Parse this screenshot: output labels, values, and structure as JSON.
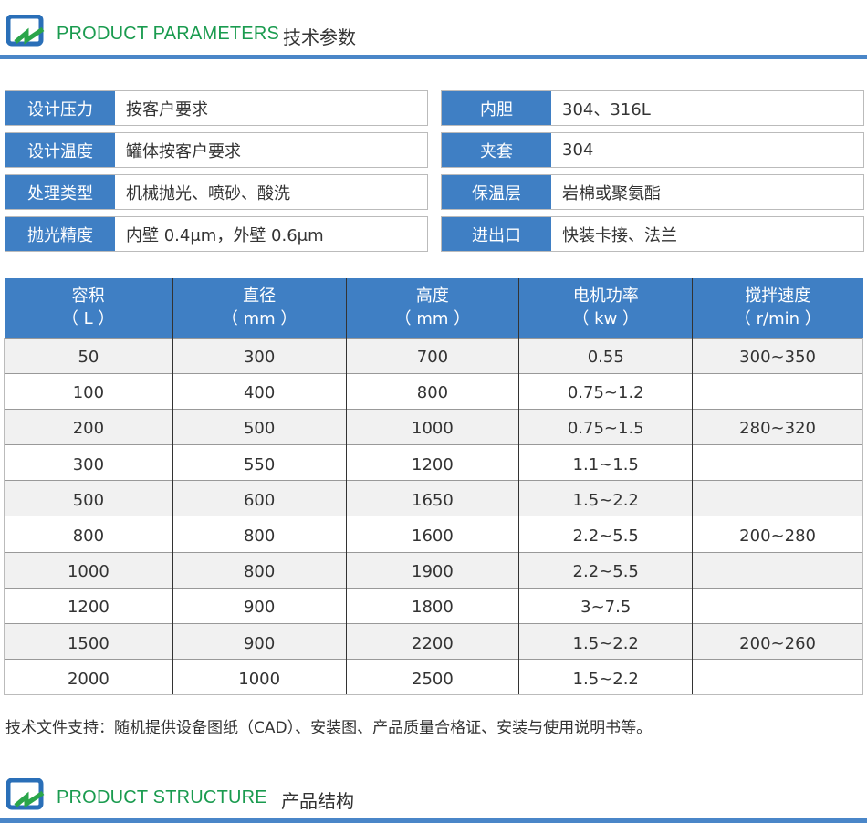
{
  "section1": {
    "title_en": "PRODUCT PARAMETERS",
    "title_cn": "技术参数"
  },
  "specs": [
    {
      "label": "设计压力",
      "value": "按客户要求"
    },
    {
      "label": "内胆",
      "value": "304、316L"
    },
    {
      "label": "设计温度",
      "value": "罐体按客户要求"
    },
    {
      "label": "夹套",
      "value": "304"
    },
    {
      "label": "处理类型",
      "value": "机械抛光、喷砂、酸洗"
    },
    {
      "label": "保温层",
      "value": "岩棉或聚氨酯"
    },
    {
      "label": "抛光精度",
      "value": "内壁 0.4μm，外壁 0.6μm"
    },
    {
      "label": "进出口",
      "value": "快装卡接、法兰"
    }
  ],
  "table": {
    "headers": [
      [
        "容积",
        "（ L ）"
      ],
      [
        "直径",
        "（ mm ）"
      ],
      [
        "高度",
        "（ mm ）"
      ],
      [
        "电机功率",
        "（ kw ）"
      ],
      [
        "搅拌速度",
        "（ r/min ）"
      ]
    ],
    "rows": [
      [
        "50",
        "300",
        "700",
        "0.55",
        "300~350"
      ],
      [
        "100",
        "400",
        "800",
        "0.75~1.2",
        ""
      ],
      [
        "200",
        "500",
        "1000",
        "0.75~1.5",
        "280~320"
      ],
      [
        "300",
        "550",
        "1200",
        "1.1~1.5",
        ""
      ],
      [
        "500",
        "600",
        "1650",
        "1.5~2.2",
        ""
      ],
      [
        "800",
        "800",
        "1600",
        "2.2~5.5",
        "200~280"
      ],
      [
        "1000",
        "800",
        "1900",
        "2.2~5.5",
        ""
      ],
      [
        "1200",
        "900",
        "1800",
        "3~7.5",
        ""
      ],
      [
        "1500",
        "900",
        "2200",
        "1.5~2.2",
        "200~260"
      ],
      [
        "2000",
        "1000",
        "2500",
        "1.5~2.2",
        ""
      ]
    ]
  },
  "note": "技术文件支持：随机提供设备图纸（CAD）、安装图、产品质量合格证、安装与使用说明书等。",
  "section2": {
    "title_en": "PRODUCT STRUCTURE",
    "title_cn": "产品结构"
  },
  "colors": {
    "accent": "#3f7fc4",
    "green": "#1a9b4f"
  }
}
